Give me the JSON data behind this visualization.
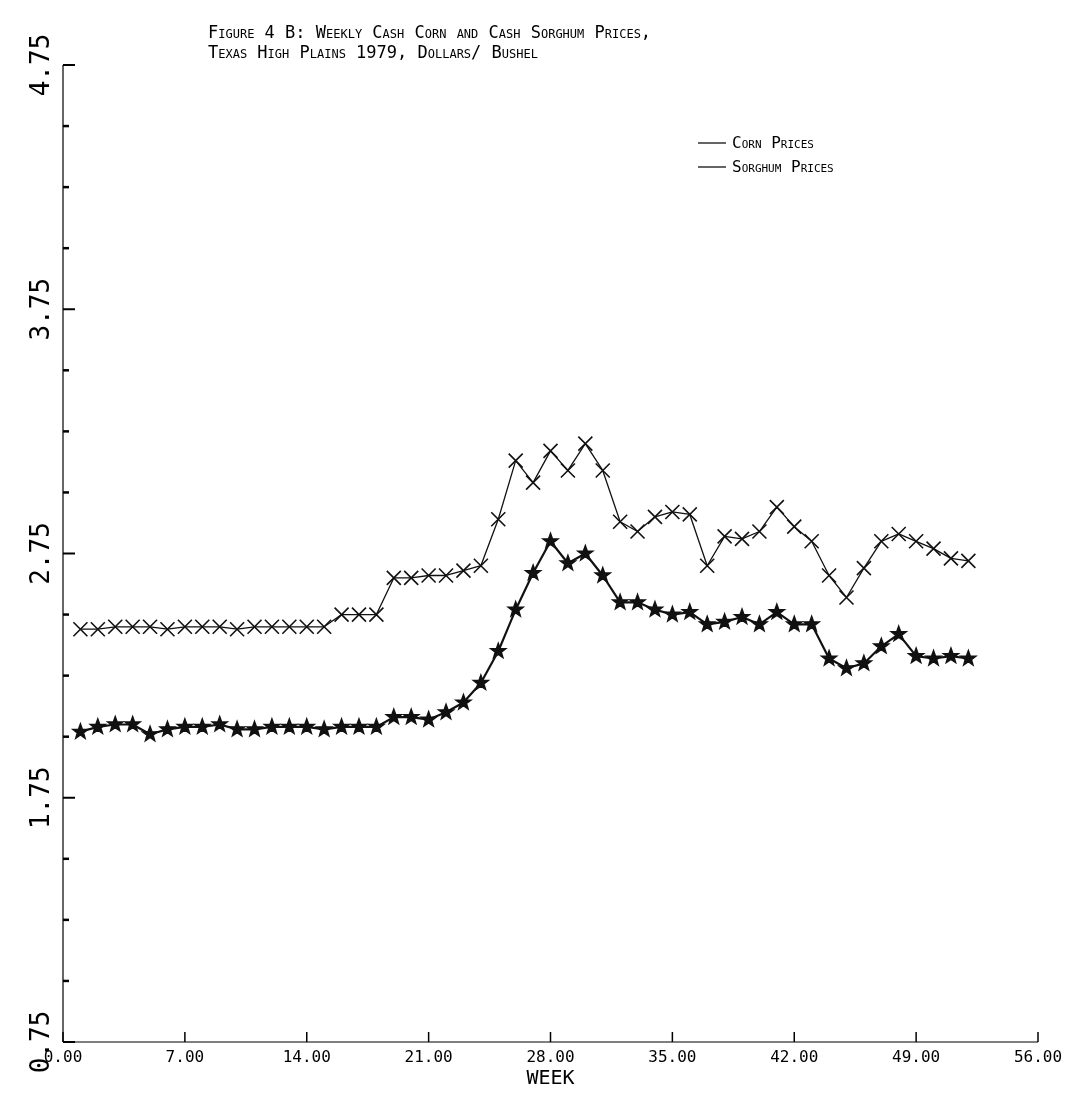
{
  "chart_data": {
    "type": "line",
    "title": "Figure 4 B: Weekly Cash Corn and Cash Sorghum Prices, Texas High Plains 1979, Dollars/ Bushel",
    "xlabel": "WEEK",
    "x": [
      1,
      2,
      3,
      4,
      5,
      6,
      7,
      8,
      9,
      10,
      11,
      12,
      13,
      14,
      15,
      16,
      17,
      18,
      19,
      20,
      21,
      22,
      23,
      24,
      25,
      26,
      27,
      28,
      29,
      30,
      31,
      32,
      33,
      34,
      35,
      36,
      37,
      38,
      39,
      40,
      41,
      42,
      43,
      44,
      45,
      46,
      47,
      48,
      49,
      50,
      51,
      52
    ],
    "series": [
      {
        "name": "Corn Prices",
        "color": "#111111",
        "marker": "cross",
        "values": [
          2.44,
          2.44,
          2.45,
          2.45,
          2.45,
          2.44,
          2.45,
          2.45,
          2.45,
          2.44,
          2.45,
          2.45,
          2.45,
          2.45,
          2.45,
          2.5,
          2.5,
          2.5,
          2.65,
          2.65,
          2.66,
          2.66,
          2.68,
          2.7,
          2.89,
          3.13,
          3.04,
          3.17,
          3.09,
          3.2,
          3.09,
          2.88,
          2.84,
          2.9,
          2.92,
          2.91,
          2.7,
          2.82,
          2.81,
          2.84,
          2.94,
          2.86,
          2.8,
          2.66,
          2.57,
          2.69,
          2.8,
          2.83,
          2.8,
          2.77,
          2.73,
          2.72
        ]
      },
      {
        "name": "Sorghum Prices",
        "color": "#111111",
        "marker": "star",
        "values": [
          2.02,
          2.04,
          2.05,
          2.05,
          2.01,
          2.03,
          2.04,
          2.04,
          2.05,
          2.03,
          2.03,
          2.04,
          2.04,
          2.04,
          2.03,
          2.04,
          2.04,
          2.04,
          2.08,
          2.08,
          2.07,
          2.1,
          2.14,
          2.22,
          2.35,
          2.52,
          2.67,
          2.8,
          2.71,
          2.75,
          2.66,
          2.55,
          2.55,
          2.52,
          2.5,
          2.51,
          2.46,
          2.47,
          2.49,
          2.46,
          2.51,
          2.46,
          2.46,
          2.32,
          2.28,
          2.3,
          2.37,
          2.42,
          2.33,
          2.32,
          2.33,
          2.32
        ]
      }
    ],
    "xlim": [
      0,
      56
    ],
    "xticks": [
      {
        "value": 0,
        "label": "0.00"
      },
      {
        "value": 7,
        "label": "7.00"
      },
      {
        "value": 14,
        "label": "14.00"
      },
      {
        "value": 21,
        "label": "21.00"
      },
      {
        "value": 28,
        "label": "28.00"
      },
      {
        "value": 35,
        "label": "35.00"
      },
      {
        "value": 42,
        "label": "42.00"
      },
      {
        "value": 49,
        "label": "49.00"
      },
      {
        "value": 56,
        "label": "56.00"
      }
    ],
    "ylim": [
      0.75,
      4.75
    ],
    "yticks": [
      0.75,
      {
        "value": 1,
        "label": null
      },
      {
        "value": 1.25,
        "label": null
      },
      {
        "value": 1.5,
        "label": null
      },
      1.75,
      {
        "value": 2,
        "label": null
      },
      {
        "value": 2.25,
        "label": null
      },
      {
        "value": 2.5,
        "label": null
      },
      2.75,
      {
        "value": 3,
        "label": null
      },
      {
        "value": 3.25,
        "label": null
      },
      {
        "value": 3.5,
        "label": null
      },
      3.75,
      {
        "value": 4,
        "label": null
      },
      {
        "value": 4.25,
        "label": null
      },
      {
        "value": 4.5,
        "label": null
      },
      4.75
    ],
    "grid": false,
    "legend": "top right",
    "line_style": "solid"
  }
}
